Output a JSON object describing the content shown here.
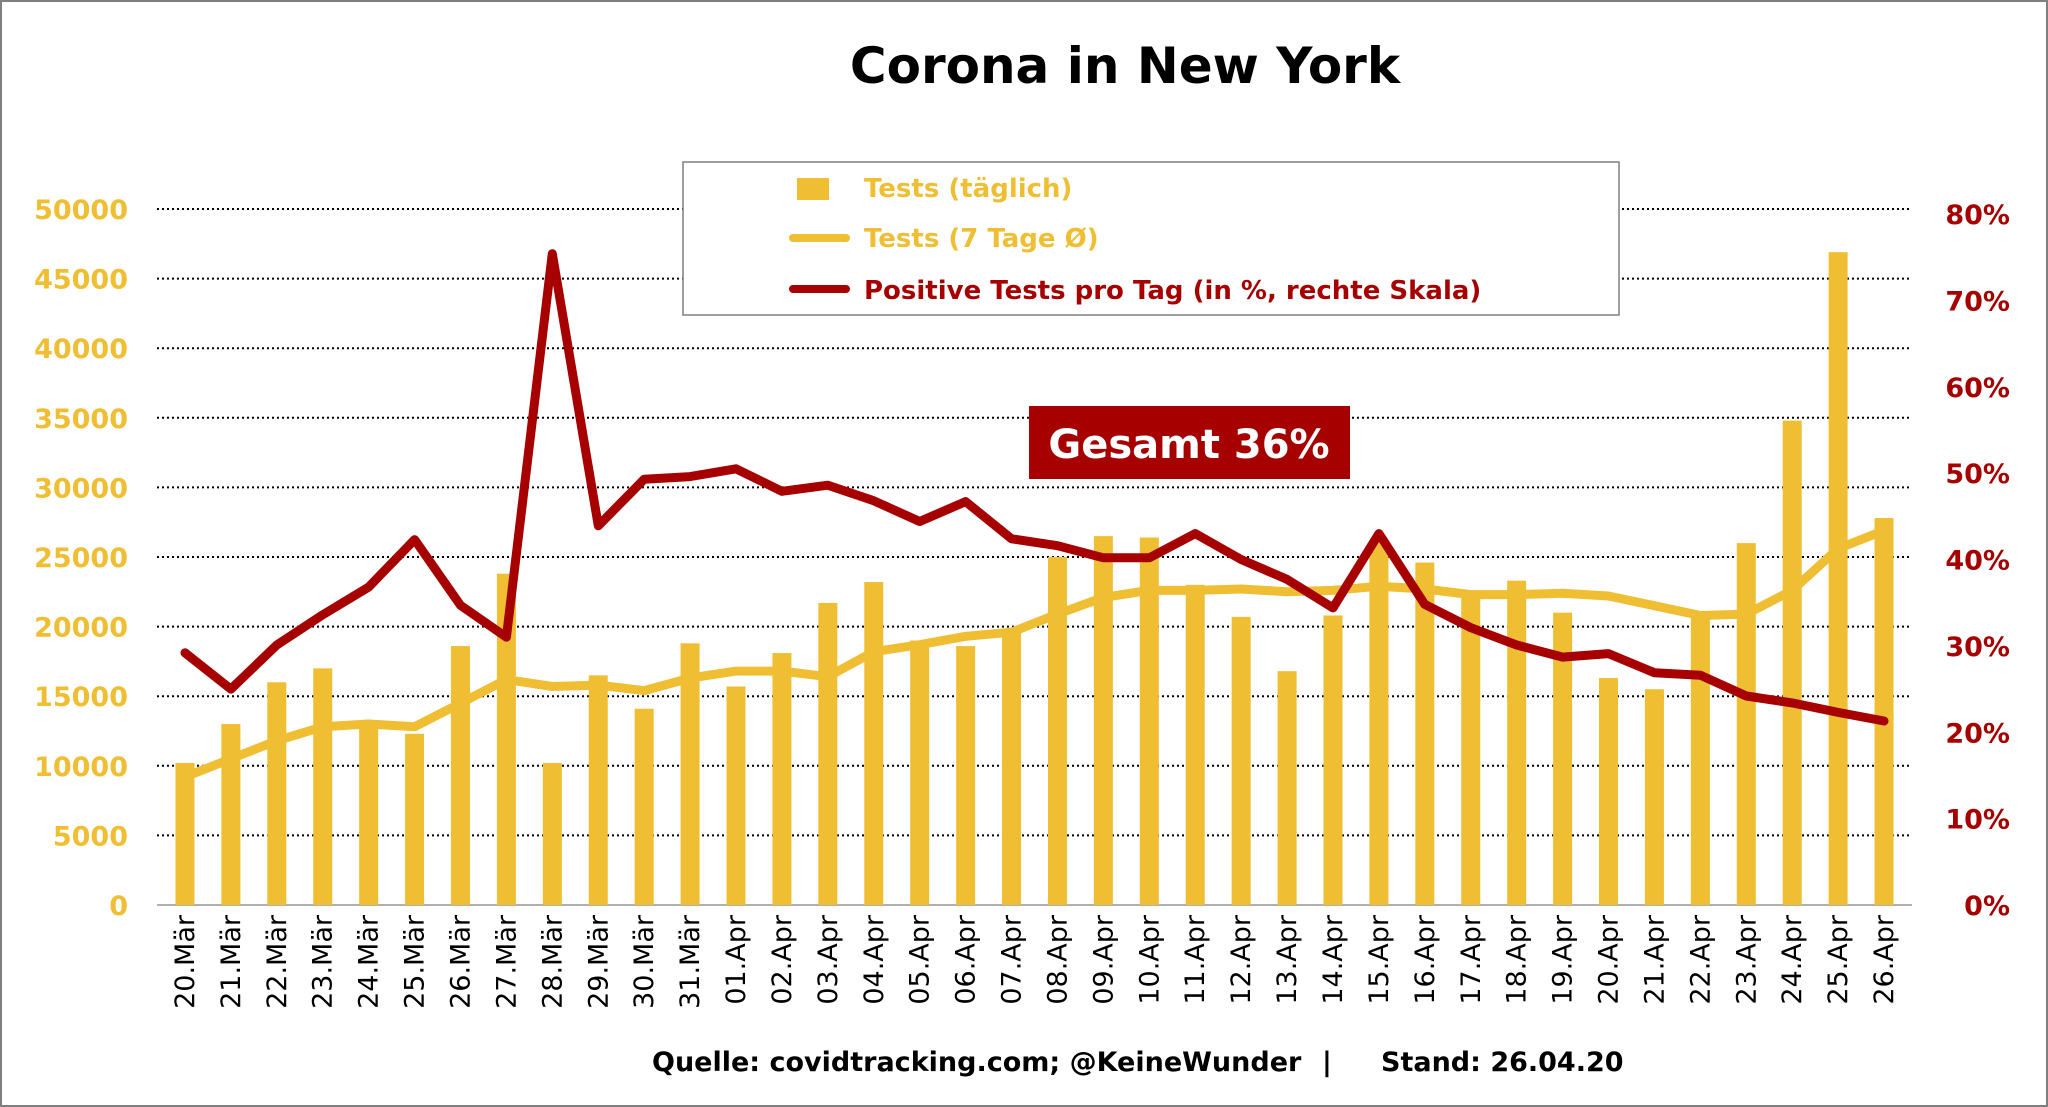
{
  "chart_data": {
    "type": "bar+line",
    "title": "Corona in New York",
    "categories": [
      "20.Mär",
      "21.Mär",
      "22.Mär",
      "23.Mär",
      "24.Mär",
      "25.Mär",
      "26.Mär",
      "27.Mär",
      "28.Mär",
      "29.Mär",
      "30.Mär",
      "31.Mär",
      "01.Apr",
      "02.Apr",
      "03.Apr",
      "04.Apr",
      "05.Apr",
      "06.Apr",
      "07.Apr",
      "08.Apr",
      "09.Apr",
      "10.Apr",
      "11.Apr",
      "12.Apr",
      "13.Apr",
      "14.Apr",
      "15.Apr",
      "16.Apr",
      "17.Apr",
      "18.Apr",
      "19.Apr",
      "20.Apr",
      "21.Apr",
      "22.Apr",
      "23.Apr",
      "24.Apr",
      "25.Apr",
      "26.Apr"
    ],
    "series": [
      {
        "name": "Tests (täglich)",
        "type": "bar",
        "axis": "left",
        "color": "#f0be32",
        "values": [
          10200,
          13000,
          16000,
          17000,
          12800,
          12300,
          18600,
          23800,
          10200,
          16500,
          14100,
          18800,
          15700,
          18100,
          21700,
          23200,
          19000,
          18600,
          19700,
          25000,
          26500,
          26400,
          23000,
          20700,
          16800,
          20800,
          26100,
          24600,
          22100,
          23300,
          21000,
          16300,
          15500,
          20800,
          26000,
          34800,
          46900,
          27800
        ]
      },
      {
        "name": "Tests (7 Tage Ø)",
        "type": "line",
        "axis": "left",
        "color": "#f0be32",
        "values": [
          9200,
          10500,
          11800,
          12800,
          13000,
          12800,
          14500,
          16200,
          15700,
          15800,
          15400,
          16300,
          16800,
          16800,
          16400,
          18200,
          18700,
          19300,
          19600,
          20900,
          22100,
          22600,
          22600,
          22700,
          22500,
          22600,
          22900,
          22700,
          22300,
          22300,
          22400,
          22200,
          21500,
          20800,
          20900,
          22600,
          25600,
          26900
        ]
      },
      {
        "name": "Positive Tests pro Tag (in %, rechte Skala)",
        "type": "line",
        "axis": "right",
        "color": "#a60000",
        "values": [
          29.2,
          25.0,
          30.1,
          33.6,
          36.8,
          42.3,
          34.7,
          31.0,
          75.4,
          43.9,
          49.3,
          49.6,
          50.5,
          47.9,
          48.6,
          46.8,
          44.4,
          46.7,
          42.4,
          41.6,
          40.2,
          40.2,
          43.0,
          40.0,
          37.7,
          34.4,
          43.0,
          34.8,
          32.1,
          30.1,
          28.7,
          29.1,
          26.9,
          26.6,
          24.2,
          23.4,
          22.3,
          21.3
        ]
      }
    ],
    "y_left": {
      "min": 0,
      "max": 50000,
      "step": 5000,
      "ticks": [
        "0",
        "5000",
        "10000",
        "15000",
        "20000",
        "25000",
        "30000",
        "35000",
        "40000",
        "45000",
        "50000"
      ]
    },
    "y_right": {
      "min": 0,
      "max": 80,
      "step": 10,
      "ticks": [
        "0%",
        "10%",
        "20%",
        "30%",
        "40%",
        "50%",
        "60%",
        "70%",
        "80%"
      ]
    },
    "grid": true,
    "legend_position": "top-center",
    "annotation": "Gesamt 36%",
    "colors": {
      "tests": "#f0be32",
      "positive": "#a60000",
      "badge": "#a60000"
    }
  },
  "footer": {
    "source": "Quelle: covidtracking.com; @KeineWunder",
    "separator": "|",
    "date": "Stand: 26.04.20"
  }
}
